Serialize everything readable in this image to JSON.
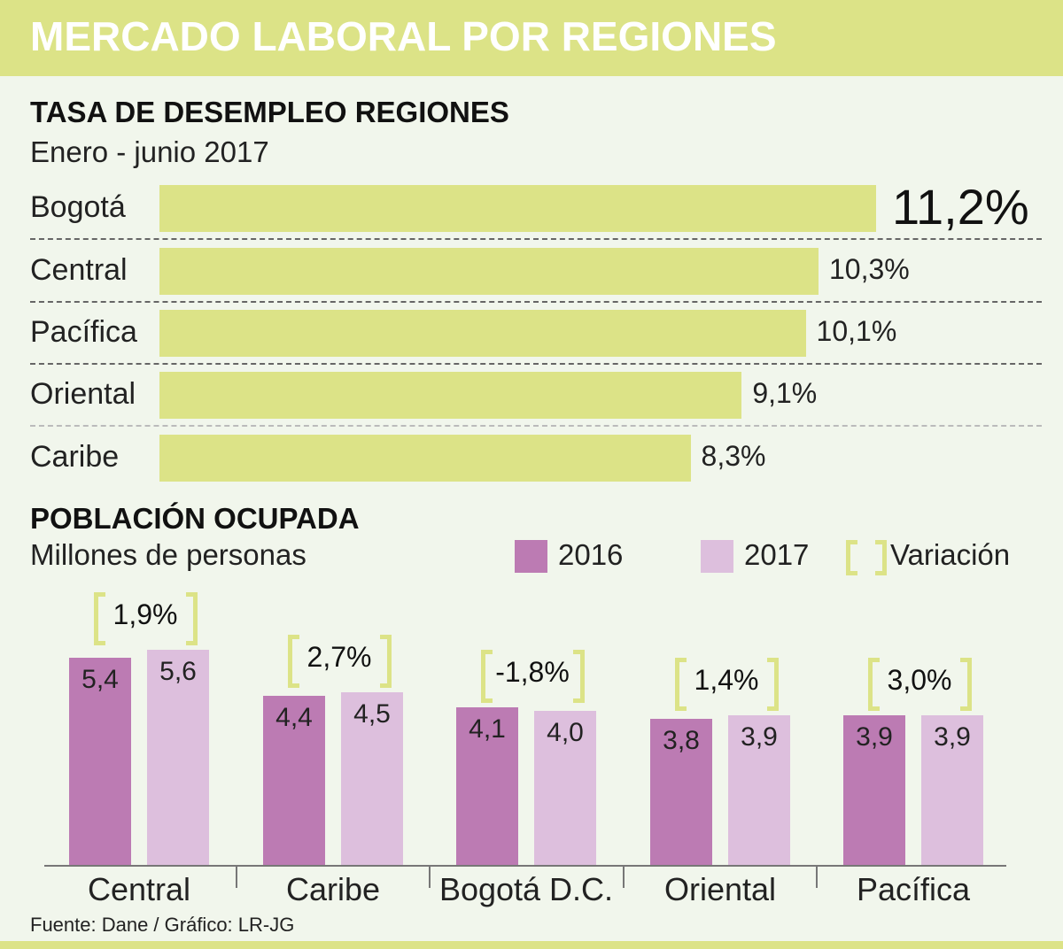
{
  "header": {
    "title": "MERCADO LABORAL POR REGIONES"
  },
  "colors": {
    "accent": "#dce387",
    "year2016": "#bc7bb3",
    "year2017": "#ddbfdd",
    "background": "#f1f6ec"
  },
  "source": "Fuente: Dane / Gráfico: LR-JG",
  "chart_data": [
    {
      "type": "bar",
      "orientation": "horizontal",
      "title": "TASA DE DESEMPLEO REGIONES",
      "subtitle": "Enero - junio 2017",
      "categories": [
        "Bogotá",
        "Central",
        "Pacífica",
        "Oriental",
        "Caribe"
      ],
      "values": [
        11.2,
        10.3,
        10.1,
        9.1,
        8.3
      ],
      "value_labels": [
        "11,2%",
        "10,3%",
        "10,1%",
        "9,1%",
        "8,3%"
      ],
      "unit": "%",
      "grid": false
    },
    {
      "type": "bar",
      "orientation": "vertical",
      "title": "POBLACIÓN OCUPADA",
      "subtitle": "Millones de personas",
      "categories": [
        "Central",
        "Caribe",
        "Bogotá D.C.",
        "Oriental",
        "Pacífica"
      ],
      "series": [
        {
          "name": "2016",
          "values": [
            5.4,
            4.4,
            4.1,
            3.8,
            3.9
          ],
          "labels": [
            "5,4",
            "4,4",
            "4,1",
            "3,8",
            "3,9"
          ]
        },
        {
          "name": "2017",
          "values": [
            5.6,
            4.5,
            4.0,
            3.9,
            3.9
          ],
          "labels": [
            "5,6",
            "4,5",
            "4,0",
            "3,9",
            "3,9"
          ]
        }
      ],
      "variation": {
        "name": "Variación",
        "values": [
          1.9,
          2.7,
          -1.8,
          1.4,
          3.0
        ],
        "labels": [
          "1,9%",
          "2,7%",
          "-1,8%",
          "1,4%",
          "3,0%"
        ]
      },
      "legend": [
        "2016",
        "2017",
        "Variación"
      ],
      "legend_position": "top-right",
      "grid": false
    }
  ]
}
